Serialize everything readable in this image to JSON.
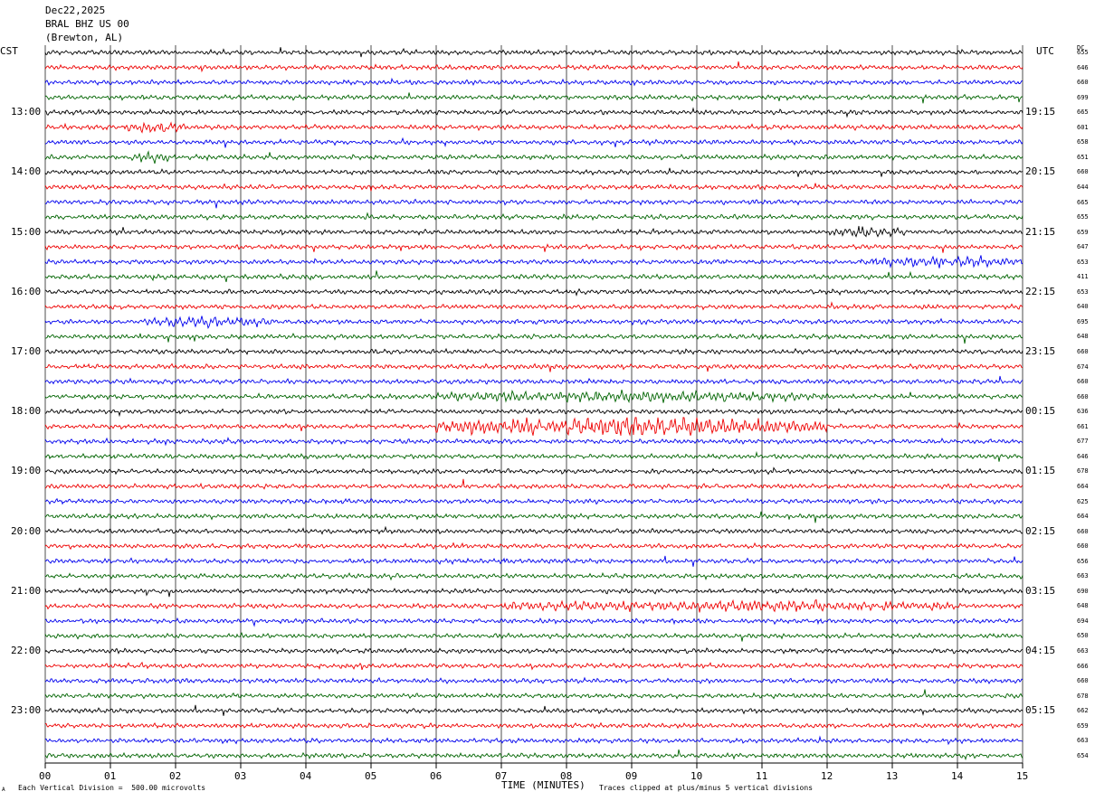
{
  "header": {
    "date": "Dec22,2025",
    "station": "BRAL BHZ US 00",
    "location": "(Brewton, AL)"
  },
  "left_axis_label": "CST",
  "right_axis_label": "UTC",
  "dc_label": "DC",
  "footer": {
    "scale_note": "Each Vertical Division =  500.00 microvolts",
    "xlabel": "TIME (MINUTES)",
    "clip_note": "Traces clipped at plus/minus 5 vertical divisions",
    "corner_mark": "A"
  },
  "colors": {
    "trace_cycle": [
      "#000000",
      "#ee0000",
      "#0000ee",
      "#006400"
    ],
    "grid": "#000000"
  },
  "chart_data": {
    "type": "line",
    "title": "Dec22,2025 BRAL BHZ US 00 (Brewton, AL)",
    "xlabel": "TIME (MINUTES)",
    "xlim": [
      0,
      15
    ],
    "x_ticks": [
      "00",
      "01",
      "02",
      "03",
      "04",
      "05",
      "06",
      "07",
      "08",
      "09",
      "10",
      "11",
      "12",
      "13",
      "14",
      "15"
    ],
    "trace_count": 48,
    "minutes_per_trace": 15,
    "left_hour_labels": [
      {
        "trace": 4,
        "label": "13:00"
      },
      {
        "trace": 8,
        "label": "14:00"
      },
      {
        "trace": 12,
        "label": "15:00"
      },
      {
        "trace": 16,
        "label": "16:00"
      },
      {
        "trace": 20,
        "label": "17:00"
      },
      {
        "trace": 24,
        "label": "18:00"
      },
      {
        "trace": 28,
        "label": "19:00"
      },
      {
        "trace": 32,
        "label": "20:00"
      },
      {
        "trace": 36,
        "label": "21:00"
      },
      {
        "trace": 40,
        "label": "22:00"
      },
      {
        "trace": 44,
        "label": "23:00"
      }
    ],
    "right_hour_labels": [
      {
        "trace": 4,
        "label": "19:15"
      },
      {
        "trace": 8,
        "label": "20:15"
      },
      {
        "trace": 12,
        "label": "21:15"
      },
      {
        "trace": 16,
        "label": "22:15"
      },
      {
        "trace": 20,
        "label": "23:15"
      },
      {
        "trace": 24,
        "label": "00:15"
      },
      {
        "trace": 28,
        "label": "01:15"
      },
      {
        "trace": 32,
        "label": "02:15"
      },
      {
        "trace": 36,
        "label": "03:15"
      },
      {
        "trace": 40,
        "label": "04:15"
      },
      {
        "trace": 44,
        "label": "05:15"
      }
    ],
    "dc_offsets": [
      "655",
      "646",
      "660",
      "699",
      "665",
      "601",
      "658",
      "651",
      "660",
      "644",
      "665",
      "655",
      "659",
      "647",
      "653",
      "411",
      "653",
      "640",
      "695",
      "648",
      "660",
      "674",
      "660",
      "660",
      "636",
      "661",
      "677",
      "646",
      "678",
      "664",
      "625",
      "664",
      "660",
      "660",
      "656",
      "663",
      "690",
      "648",
      "694",
      "650",
      "663",
      "666",
      "660",
      "678",
      "662",
      "659",
      "663",
      "654"
    ],
    "events": [
      {
        "trace": 25,
        "x_start": 6.0,
        "x_end": 12.0,
        "amplitude": "high"
      },
      {
        "trace": 23,
        "x_start": 6.0,
        "x_end": 12.0,
        "amplitude": "medium"
      },
      {
        "trace": 37,
        "x_start": 7.0,
        "x_end": 14.0,
        "amplitude": "medium"
      },
      {
        "trace": 14,
        "x_start": 12.5,
        "x_end": 15.0,
        "amplitude": "medium"
      },
      {
        "trace": 18,
        "x_start": 1.5,
        "x_end": 3.5,
        "amplitude": "medium"
      },
      {
        "trace": 12,
        "x_start": 12.0,
        "x_end": 13.2,
        "amplitude": "medium"
      },
      {
        "trace": 5,
        "x_start": 1.2,
        "x_end": 2.2,
        "amplitude": "medium"
      },
      {
        "trace": 7,
        "x_start": 1.3,
        "x_end": 1.9,
        "amplitude": "medium"
      }
    ],
    "grid": true
  }
}
